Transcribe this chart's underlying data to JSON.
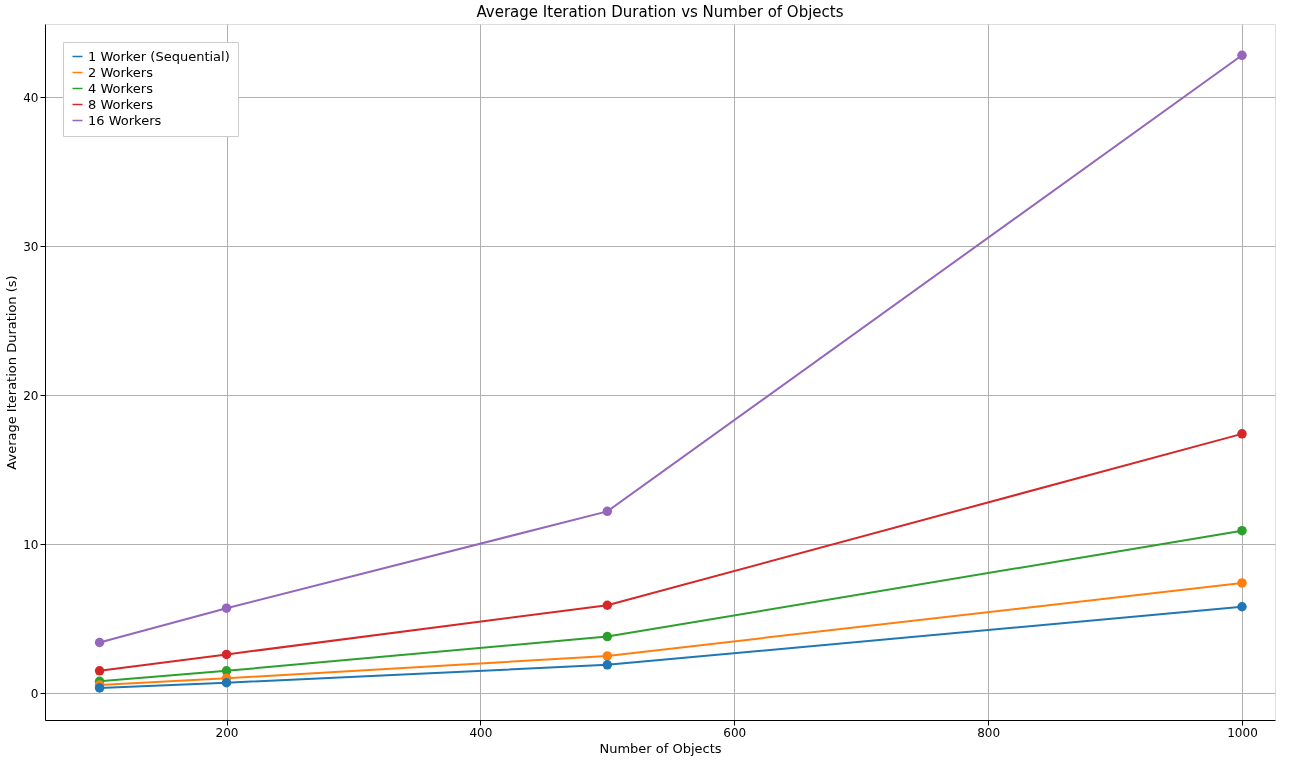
{
  "chart_data": {
    "type": "line",
    "title": "Average Iteration Duration vs Number of Objects",
    "xlabel": "Number of Objects",
    "ylabel": "Average Iteration Duration (s)",
    "x": [
      100,
      200,
      500,
      1000
    ],
    "series": [
      {
        "name": "1 Worker (Sequential)",
        "color": "#1f77b4",
        "values": [
          0.35,
          0.7,
          1.9,
          5.8
        ]
      },
      {
        "name": "2 Workers",
        "color": "#ff7f0e",
        "values": [
          0.55,
          1.0,
          2.5,
          7.4
        ]
      },
      {
        "name": "4 Workers",
        "color": "#2ca02c",
        "values": [
          0.8,
          1.5,
          3.8,
          10.9
        ]
      },
      {
        "name": "8 Workers",
        "color": "#d62728",
        "values": [
          1.5,
          2.6,
          5.9,
          17.4
        ]
      },
      {
        "name": "16 Workers",
        "color": "#9467bd",
        "values": [
          3.4,
          5.7,
          12.2,
          42.8
        ]
      }
    ],
    "xlim": [
      57,
      1026
    ],
    "xticks": [
      200,
      400,
      600,
      800,
      1000
    ],
    "ylim": [
      -1.8,
      44.9
    ],
    "yticks": [
      0,
      10,
      20,
      30,
      40
    ],
    "grid": true,
    "legend": "top left",
    "marker": "circle",
    "line_style": "solid"
  }
}
